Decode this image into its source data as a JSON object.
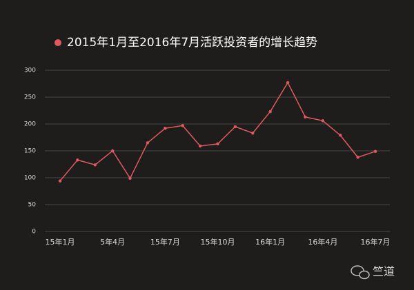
{
  "chart_data": {
    "type": "line",
    "categories": [
      "15年1月",
      null,
      null,
      "5年4月",
      null,
      null,
      "15年7月",
      null,
      null,
      "15年10月",
      null,
      null,
      "16年1月",
      null,
      null,
      "16年4月",
      null,
      null,
      "16年7月"
    ],
    "series": [
      {
        "name": "2015年1月至2016年7月活跃投资者的增长趋势",
        "color": "#e05a5c",
        "values": [
          94,
          133,
          124,
          150,
          99,
          165,
          192,
          197,
          159,
          163,
          195,
          183,
          223,
          277,
          213,
          206,
          179,
          138,
          149
        ]
      }
    ],
    "ylim": [
      0,
      300
    ],
    "yticks": [
      0,
      50,
      100,
      150,
      200,
      250,
      300
    ],
    "grid": true,
    "watermark": "竺道"
  }
}
